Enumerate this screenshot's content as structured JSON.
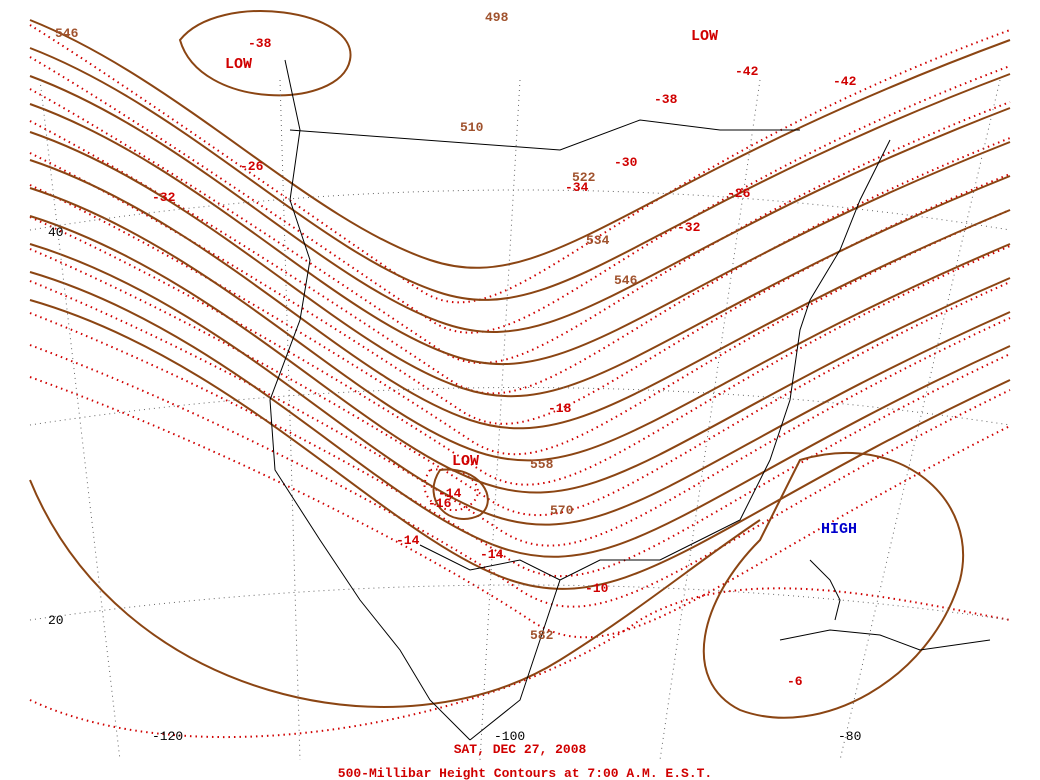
{
  "map": {
    "contour_labels": [
      "546",
      "498",
      "510",
      "522",
      "534",
      "546",
      "558",
      "570",
      "582"
    ],
    "temperature_labels": [
      "-38",
      "-42",
      "-42",
      "-38",
      "-26",
      "-32",
      "-34",
      "-30",
      "-26",
      "-32",
      "-18",
      "-14",
      "-16",
      "-14",
      "-14",
      "-10",
      "-6"
    ],
    "pressure_centers": [
      "LOW",
      "LOW",
      "LOW",
      "HIGH"
    ],
    "latitude_labels": [
      "40",
      "20"
    ],
    "longitude_labels": [
      "-120",
      "-100",
      "-80"
    ]
  },
  "date": "SAT, DEC 27, 2008",
  "title": "500-Millibar Height Contours at 7:00 A.M. E.S.T."
}
